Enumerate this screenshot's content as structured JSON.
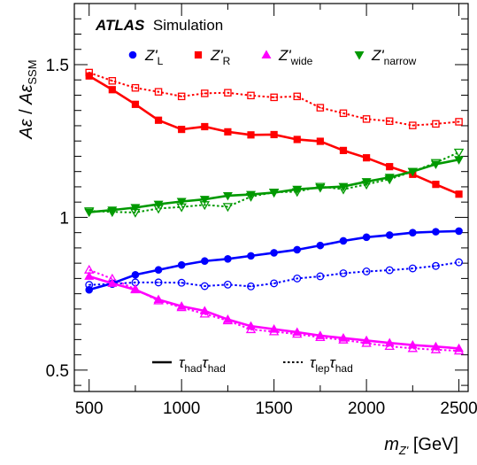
{
  "chart_data": {
    "type": "line",
    "title": "",
    "experiment_label": "ATLAS",
    "label_suffix": "Simulation",
    "xlabel": "m_{Z'} [GeV]",
    "xlabel_parts": {
      "main": "m",
      "sub": "Z'",
      "unit": " [GeV]"
    },
    "ylabel": "Aε / Aε_SSM",
    "ylabel_parts": {
      "num": "Aε",
      "sep": " / ",
      "den": "Aε",
      "den_sub": "SSM"
    },
    "xlim": [
      420,
      2550
    ],
    "ylim": [
      0.43,
      1.7
    ],
    "x_ticks": [
      500,
      1000,
      1500,
      2000,
      2500
    ],
    "x_tick_labels": [
      "500",
      "1000",
      "1500",
      "2000",
      "2500"
    ],
    "y_ticks": [
      0.5,
      1.0,
      1.5
    ],
    "y_tick_labels": [
      "0.5",
      "1",
      "1.5"
    ],
    "grid": false,
    "legend_placement": "top",
    "x": [
      500,
      625,
      750,
      875,
      1000,
      1125,
      1250,
      1375,
      1500,
      1625,
      1750,
      1875,
      2000,
      2125,
      2250,
      2375,
      2500
    ],
    "series": [
      {
        "name": "Z'_L (τhad τhad)",
        "model": "L",
        "channel": "hadhad",
        "color": "#0000ff",
        "marker": "circle",
        "filled": true,
        "linestyle": "solid",
        "values": [
          0.763,
          0.784,
          0.812,
          0.828,
          0.844,
          0.857,
          0.864,
          0.874,
          0.884,
          0.894,
          0.908,
          0.923,
          0.935,
          0.942,
          0.95,
          0.953,
          0.955
        ]
      },
      {
        "name": "Z'_L (τlep τhad)",
        "model": "L",
        "channel": "lephad",
        "color": "#0000ff",
        "marker": "circle",
        "filled": false,
        "linestyle": "dotted",
        "values": [
          0.779,
          0.782,
          0.787,
          0.787,
          0.786,
          0.775,
          0.78,
          0.774,
          0.784,
          0.8,
          0.807,
          0.817,
          0.823,
          0.827,
          0.833,
          0.841,
          0.853
        ]
      },
      {
        "name": "Z'_R (τhad τhad)",
        "model": "R",
        "channel": "hadhad",
        "color": "#ff0000",
        "marker": "square",
        "filled": true,
        "linestyle": "solid",
        "values": [
          1.463,
          1.418,
          1.37,
          1.318,
          1.288,
          1.297,
          1.28,
          1.27,
          1.271,
          1.255,
          1.249,
          1.219,
          1.195,
          1.166,
          1.141,
          1.108,
          1.076
        ]
      },
      {
        "name": "Z'_R (τlep τhad)",
        "model": "R",
        "channel": "lephad",
        "color": "#ff0000",
        "marker": "square",
        "filled": false,
        "linestyle": "dotted",
        "values": [
          1.474,
          1.447,
          1.424,
          1.411,
          1.396,
          1.406,
          1.408,
          1.399,
          1.393,
          1.396,
          1.359,
          1.341,
          1.322,
          1.315,
          1.301,
          1.306,
          1.313
        ]
      },
      {
        "name": "Z'_wide (τhad τhad)",
        "model": "wide",
        "channel": "hadhad",
        "color": "#ff00ff",
        "marker": "triangle-up",
        "filled": true,
        "linestyle": "solid",
        "values": [
          0.807,
          0.784,
          0.763,
          0.731,
          0.709,
          0.694,
          0.666,
          0.644,
          0.634,
          0.624,
          0.613,
          0.605,
          0.597,
          0.589,
          0.582,
          0.577,
          0.571
        ]
      },
      {
        "name": "Z'_wide (τlep τhad)",
        "model": "wide",
        "channel": "lephad",
        "color": "#ff00ff",
        "marker": "triangle-up",
        "filled": false,
        "linestyle": "dotted",
        "values": [
          0.828,
          0.799,
          0.765,
          0.727,
          0.705,
          0.684,
          0.662,
          0.633,
          0.626,
          0.618,
          0.607,
          0.599,
          0.588,
          0.578,
          0.571,
          0.567,
          0.563
        ]
      },
      {
        "name": "Z'_narrow (τhad τhad)",
        "model": "narrow",
        "channel": "hadhad",
        "color": "#009900",
        "marker": "triangle-down",
        "filled": true,
        "linestyle": "solid",
        "values": [
          1.017,
          1.024,
          1.032,
          1.043,
          1.052,
          1.059,
          1.071,
          1.075,
          1.081,
          1.092,
          1.097,
          1.101,
          1.117,
          1.131,
          1.15,
          1.174,
          1.189
        ]
      },
      {
        "name": "Z'_narrow (τlep τhad)",
        "model": "narrow",
        "channel": "lephad",
        "color": "#009900",
        "marker": "triangle-down",
        "filled": false,
        "linestyle": "dotted",
        "values": [
          1.021,
          1.018,
          1.016,
          1.029,
          1.034,
          1.041,
          1.035,
          1.068,
          1.082,
          1.084,
          1.101,
          1.092,
          1.108,
          1.125,
          1.15,
          1.179,
          1.213
        ]
      }
    ],
    "legend_models": [
      {
        "key": "L",
        "color": "#0000ff",
        "marker": "circle",
        "label": {
          "main": "Z'",
          "sub": "L"
        }
      },
      {
        "key": "R",
        "color": "#ff0000",
        "marker": "square",
        "label": {
          "main": "Z'",
          "sub": "R"
        }
      },
      {
        "key": "wide",
        "color": "#ff00ff",
        "marker": "triangle-up",
        "label": {
          "main": "Z'",
          "sub": "wide"
        }
      },
      {
        "key": "narrow",
        "color": "#009900",
        "marker": "triangle-down",
        "label": {
          "main": "Z'",
          "sub": "narrow"
        }
      }
    ],
    "legend_channels": [
      {
        "key": "hadhad",
        "linestyle": "solid",
        "label": {
          "t1": "τ",
          "s1": "had",
          "t2": "τ",
          "s2": "had"
        }
      },
      {
        "key": "lephad",
        "linestyle": "dotted",
        "label": {
          "t1": "τ",
          "s1": "lep",
          "t2": "τ",
          "s2": "had"
        }
      }
    ]
  }
}
